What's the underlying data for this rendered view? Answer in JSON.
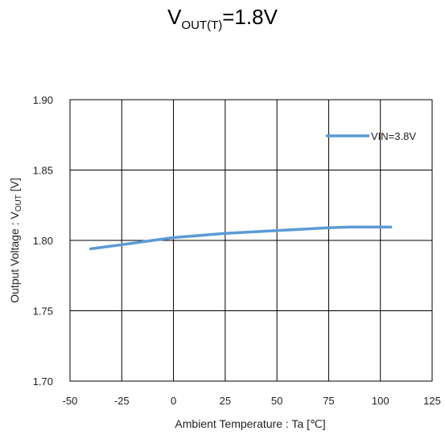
{
  "chart_data": {
    "type": "line",
    "title": {
      "main": "V",
      "sub": "OUT(T)",
      "suffix": "=1.8V"
    },
    "xlabel": "Ambient  Temperature  : Ta [℃]",
    "ylabel": {
      "main": "Output Voltage : V",
      "sub": "OUT",
      "suffix": " [V]"
    },
    "xlim": [
      -50,
      125
    ],
    "ylim": [
      1.7,
      1.9
    ],
    "x_ticks": [
      -50,
      -25,
      0,
      25,
      50,
      75,
      100,
      125
    ],
    "x_tick_labels": [
      "-50",
      "-25",
      "0",
      "25",
      "50",
      "75",
      "100",
      "125"
    ],
    "y_ticks": [
      1.7,
      1.75,
      1.8,
      1.85,
      1.9
    ],
    "y_tick_labels": [
      "1.70",
      "1.75",
      "1.80",
      "1.85",
      "1.90"
    ],
    "grid": true,
    "legend_position": "top-right",
    "series": [
      {
        "name": "VIN=3.8V",
        "color": "#5b9bd5",
        "x": [
          -40,
          -25,
          -10,
          0,
          25,
          50,
          75,
          85,
          105
        ],
        "y": [
          1.794,
          1.797,
          1.8,
          1.802,
          1.805,
          1.807,
          1.809,
          1.8095,
          1.8095
        ]
      }
    ]
  }
}
